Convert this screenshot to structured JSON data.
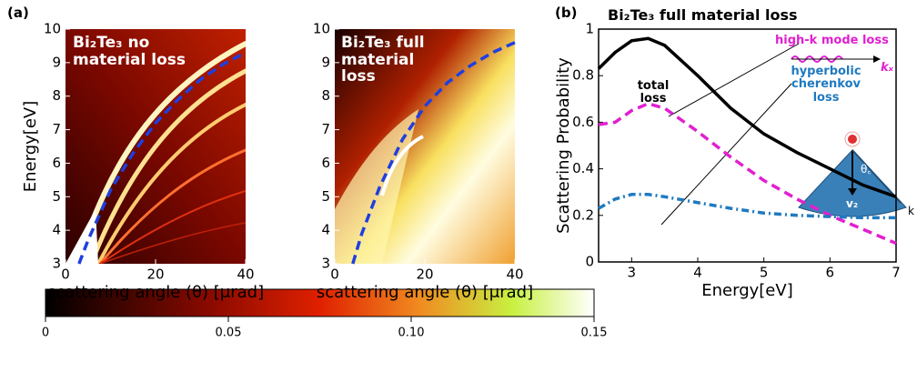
{
  "panel_labels": [
    "(a)",
    "(b)"
  ],
  "inset": {
    "kx": "kₓ",
    "theta": "θ꜀",
    "vz": "v₂",
    "k": "k"
  },
  "colorbar": {
    "lim": [
      0,
      0.15
    ],
    "ticks": [
      0,
      0.05,
      {
        "value": 0.1,
        "label": "0.10"
      },
      0.15
    ]
  },
  "chart_data": [
    {
      "type": "line",
      "title": "Bi₂Te₃ no material loss",
      "xlabel": "scattering angle (θ) [μrad]",
      "ylabel": "Energy[eV]",
      "xlim": [
        0,
        40
      ],
      "ylim": [
        3,
        10
      ],
      "xticks": [
        0,
        20,
        40
      ],
      "yticks": [
        3,
        4,
        5,
        6,
        7,
        8,
        9,
        10
      ],
      "x": [
        3,
        5,
        10,
        15,
        20,
        25,
        30,
        35,
        40
      ],
      "series": [
        {
          "color": "#1f3fe0",
          "dash": "dashed",
          "values": [
            3,
            3.7,
            5.2,
            6.3,
            7.2,
            7.9,
            8.5,
            8.95,
            9.3
          ]
        }
      ]
    },
    {
      "type": "line",
      "title": "Bi₂Te₃ full material loss",
      "xlabel": "scattering angle (θ) [μrad]",
      "xlim": [
        0,
        40
      ],
      "ylim": [
        3,
        10
      ],
      "xticks": [
        0,
        20,
        40
      ],
      "yticks": [
        3,
        4,
        5,
        6,
        7,
        8,
        9,
        10
      ],
      "x": [
        4,
        6,
        10,
        15,
        20,
        25,
        30,
        35,
        40
      ],
      "series": [
        {
          "color": "#1f3fe0",
          "dash": "dashed",
          "values": [
            3,
            3.9,
            5.3,
            6.7,
            7.7,
            8.4,
            8.9,
            9.3,
            9.6
          ]
        }
      ]
    },
    {
      "type": "line",
      "title": "Bi₂Te₃ full material loss",
      "xlabel": "Energy[eV]",
      "ylabel": "Scattering Probability",
      "xlim": [
        2.5,
        7
      ],
      "ylim": [
        0,
        1
      ],
      "xticks": [
        3,
        4,
        5,
        6,
        7
      ],
      "yticks": [
        0,
        0.2,
        0.4,
        0.6,
        0.8,
        1
      ],
      "x": [
        2.5,
        2.75,
        3,
        3.25,
        3.5,
        4,
        4.5,
        5,
        5.5,
        6,
        6.5,
        7
      ],
      "series": [
        {
          "name": "total loss",
          "color": "#000000",
          "dash": "solid",
          "values": [
            0.83,
            0.9,
            0.95,
            0.96,
            0.93,
            0.8,
            0.66,
            0.55,
            0.47,
            0.4,
            0.33,
            0.28
          ]
        },
        {
          "name": "high-k mode loss",
          "color": "#e020d0",
          "dash": "dashed",
          "values": [
            0.59,
            0.6,
            0.65,
            0.68,
            0.66,
            0.56,
            0.45,
            0.35,
            0.27,
            0.2,
            0.14,
            0.08
          ]
        },
        {
          "name": "hyperbolic cherenkov loss",
          "color": "#1f7ac0",
          "dash": "dashdot",
          "values": [
            0.23,
            0.27,
            0.29,
            0.29,
            0.28,
            0.255,
            0.23,
            0.21,
            0.2,
            0.195,
            0.19,
            0.19
          ]
        }
      ]
    }
  ]
}
